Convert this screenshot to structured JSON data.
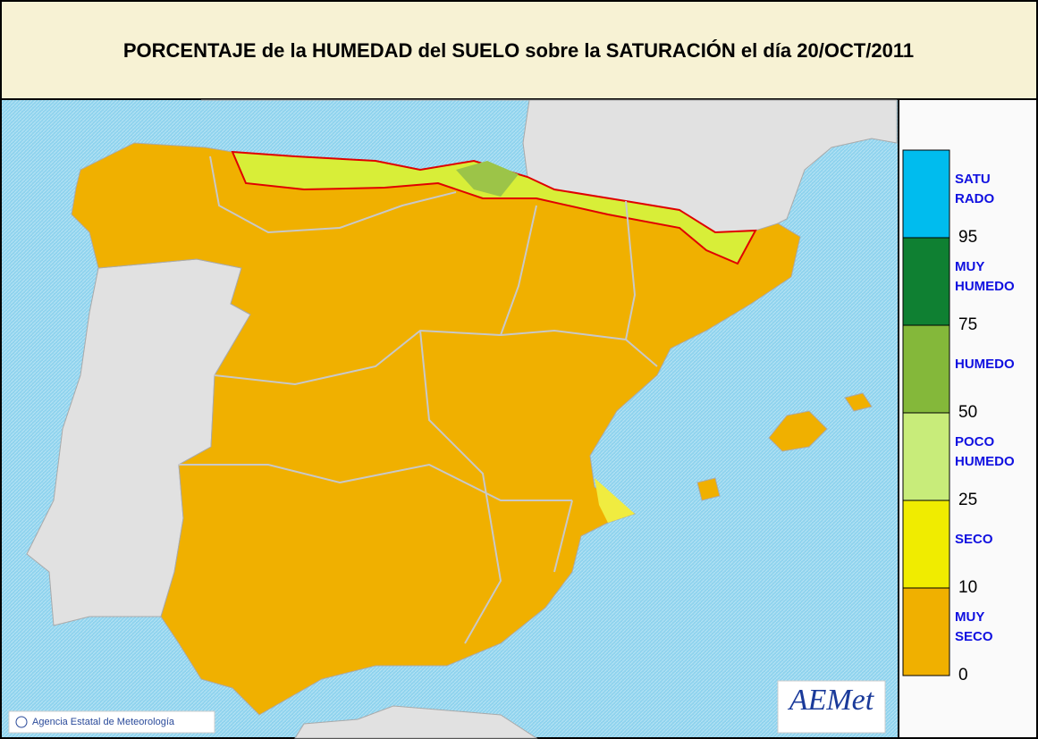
{
  "title": "PORCENTAJE de la HUMEDAD del SUELO sobre la SATURACIÓN el día 20/OCT/2011",
  "legend": {
    "classes": [
      {
        "lines": [
          "SATU",
          "RADO"
        ],
        "color": "#00bcee"
      },
      {
        "lines": [
          "MUY",
          "HUMEDO"
        ],
        "color": "#0f8032"
      },
      {
        "lines": [
          "HUMEDO"
        ],
        "color": "#84b83a"
      },
      {
        "lines": [
          "POCO",
          "HUMEDO"
        ],
        "color": "#c8ec7a"
      },
      {
        "lines": [
          "SECO"
        ],
        "color": "#f0ec00"
      },
      {
        "lines": [
          "MUY",
          "SECO"
        ],
        "color": "#f0b000"
      }
    ],
    "breaks": [
      95,
      75,
      50,
      25,
      10,
      0
    ]
  },
  "credit": "Agencia Estatal de Meteorología",
  "logo": "AEMet"
}
